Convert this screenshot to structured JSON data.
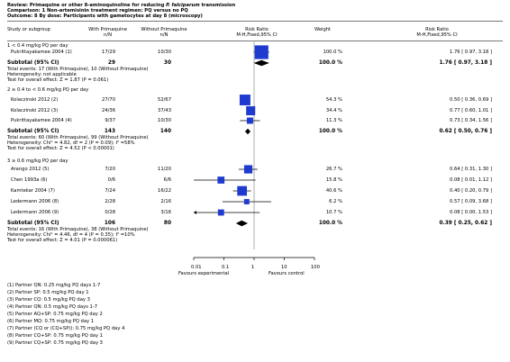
{
  "header": {
    "review": "Review: Primaquine or other 8-aminoquinoline for reducing",
    "review_italic": "P. falciparum",
    "review_end": "transmission",
    "comparison": "Comparison: 1 Non-artemisinin treatment regimen: PQ versus no PQ",
    "outcome": "Outcome: 8 By dose: Participants with gametocytes at day 8 (microscopy)"
  },
  "columns": {
    "study": "Study or subgroup",
    "g1": "With Primaquine",
    "g1n": "n/N",
    "g2": "Without Primaquine",
    "g2n": "n/N",
    "rr": "Risk Ratio",
    "rr_sub": "M-H,Fixed,95% CI",
    "weight": "Weight",
    "rr2": "Risk Ratio",
    "rr2_sub": "M-H,Fixed,95% CI"
  },
  "subgroups": [
    {
      "title": "1 < 0.4 mg/kg PQ per day",
      "studies": [
        {
          "name": "Pukrittayakamee 2004 (1)",
          "g1": "17/29",
          "g2": "10/30",
          "weight": "100.0 %",
          "ci": "1.76 [ 0.97, 3.18 ]",
          "rr": 1.76,
          "lo": 0.97,
          "hi": 3.18,
          "w": 100.0
        }
      ],
      "subtotal": {
        "label": "Subtotal (95% CI)",
        "g1": "29",
        "g2": "30",
        "weight": "100.0 %",
        "ci": "1.76 [ 0.97, 3.18 ]",
        "rr": 1.76,
        "lo": 0.97,
        "hi": 3.18
      },
      "notes": [
        "Total events: 17 (With Primaquine), 10 (Without Primaquine)",
        "Heterogeneity: not applicable",
        "Test for overall effect: Z = 1.87 (P = 0.061)"
      ]
    },
    {
      "title": "2 ≥ 0.4 to < 0.6 mg/kg PQ per day",
      "studies": [
        {
          "name": "Kolaczinski 2012 (2)",
          "g1": "27/70",
          "g2": "52/67",
          "weight": "54.3 %",
          "ci": "0.50 [ 0.36, 0.69 ]",
          "rr": 0.5,
          "lo": 0.36,
          "hi": 0.69,
          "w": 54.3
        },
        {
          "name": "Kolaczinski 2012 (3)",
          "g1": "24/36",
          "g2": "37/43",
          "weight": "34.4 %",
          "ci": "0.77 [ 0.60, 1.01 ]",
          "rr": 0.77,
          "lo": 0.6,
          "hi": 1.01,
          "w": 34.4
        },
        {
          "name": "Pukrittayakamee 2004 (4)",
          "g1": "9/37",
          "g2": "10/30",
          "weight": "11.3 %",
          "ci": "0.73 [ 0.34, 1.56 ]",
          "rr": 0.73,
          "lo": 0.34,
          "hi": 1.56,
          "w": 11.3
        }
      ],
      "subtotal": {
        "label": "Subtotal (95% CI)",
        "g1": "143",
        "g2": "140",
        "weight": "100.0 %",
        "ci": "0.62 [ 0.50, 0.76 ]",
        "rr": 0.62,
        "lo": 0.5,
        "hi": 0.76
      },
      "notes": [
        "Total events: 60 (With Primaquine), 99 (Without Primaquine)",
        "Heterogeneity: Chi² = 4.82, df = 2 (P = 0.09); I² =58%",
        "Test for overall effect: Z = 4.52 (P < 0.00001)"
      ]
    },
    {
      "title": "3 ≥ 0.6 mg/kg PQ per day",
      "studies": [
        {
          "name": "Arango 2012 (5)",
          "g1": "7/20",
          "g2": "11/20",
          "weight": "26.7 %",
          "ci": "0.64 [ 0.31, 1.30 ]",
          "rr": 0.64,
          "lo": 0.31,
          "hi": 1.3,
          "w": 26.7
        },
        {
          "name": "Chen 1993a (6)",
          "g1": "0/6",
          "g2": "6/6",
          "weight": "15.8 %",
          "ci": "0.08 [ 0.01, 1.12 ]",
          "rr": 0.08,
          "lo": 0.01,
          "hi": 1.12,
          "w": 15.8
        },
        {
          "name": "Kamtekar 2004 (7)",
          "g1": "7/24",
          "g2": "16/22",
          "weight": "40.6 %",
          "ci": "0.40 [ 0.20, 0.79 ]",
          "rr": 0.4,
          "lo": 0.2,
          "hi": 0.79,
          "w": 40.6
        },
        {
          "name": "Ledermann 2006 (8)",
          "g1": "2/28",
          "g2": "2/16",
          "weight": "6.2 %",
          "ci": "0.57 [ 0.09, 3.68 ]",
          "rr": 0.57,
          "lo": 0.09,
          "hi": 3.68,
          "w": 6.2
        },
        {
          "name": "Ledermann 2006 (9)",
          "g1": "0/28",
          "g2": "3/16",
          "weight": "10.7 %",
          "ci": "0.08 [ 0.00, 1.53 ]",
          "rr": 0.08,
          "lo": 0.004,
          "hi": 1.53,
          "w": 10.7
        }
      ],
      "subtotal": {
        "label": "Subtotal (95% CI)",
        "g1": "106",
        "g2": "80",
        "weight": "100.0 %",
        "ci": "0.39 [ 0.25, 0.62 ]",
        "rr": 0.39,
        "lo": 0.25,
        "hi": 0.62
      },
      "notes": [
        "Total events: 16 (With Primaquine), 38 (Without Primaquine)",
        "Heterogeneity: Chi² = 4.46, df = 4 (P = 0.35); I² =10%",
        "Test for overall effect: Z = 4.01 (P = 0.000061)"
      ]
    }
  ],
  "axis": {
    "ticks": [
      "0.01",
      "0.1",
      "1",
      "10",
      "100"
    ],
    "left_label": "Favours experimental",
    "right_label": "Favours control"
  },
  "footnotes": [
    "(1) Partner QN: 0.25 mg/kg PQ days 1-7",
    "(2) Partner SP: 0.5 mg/kg PQ day 1",
    "(3) Partner CQ: 0.5 mg/kg PQ day 3",
    "(4) Partner QN: 0.5 mg/kg PQ days 1-7",
    "(5) Partner AQ+SP: 0.75 mg/kg PQ day 2",
    "(6) Partner MQ: 0.75 mg/kg PQ day 1",
    "(7) Partner (CQ or (CQ+SP)): 0.75 mg/kg PQ day 4",
    "(8) Partner CQ+SP: 0.75 mg/kg PQ day 1",
    "(9) Partner CQ+SP: 0.75 mg/kg PQ day 3"
  ],
  "chart_data": {
    "type": "forest",
    "scale": "log",
    "xlim": [
      0.01,
      100
    ],
    "null_line": 1,
    "xticks": [
      0.01,
      0.1,
      1,
      10,
      100
    ],
    "left_label": "Favours experimental",
    "right_label": "Favours control",
    "colors": {
      "study": "#1f3bcf",
      "pooled": "#000000"
    },
    "series": [
      {
        "name": "1 < 0.4 mg/kg PQ per day",
        "points": [
          {
            "label": "Pukrittayakamee 2004 (1)",
            "rr": 1.76,
            "lo": 0.97,
            "hi": 3.18,
            "weight": 100.0
          }
        ],
        "pooled": {
          "rr": 1.76,
          "lo": 0.97,
          "hi": 3.18
        }
      },
      {
        "name": "2 ≥ 0.4 to < 0.6 mg/kg PQ per day",
        "points": [
          {
            "label": "Kolaczinski 2012 (2)",
            "rr": 0.5,
            "lo": 0.36,
            "hi": 0.69,
            "weight": 54.3
          },
          {
            "label": "Kolaczinski 2012 (3)",
            "rr": 0.77,
            "lo": 0.6,
            "hi": 1.01,
            "weight": 34.4
          },
          {
            "label": "Pukrittayakamee 2004 (4)",
            "rr": 0.73,
            "lo": 0.34,
            "hi": 1.56,
            "weight": 11.3
          }
        ],
        "pooled": {
          "rr": 0.62,
          "lo": 0.5,
          "hi": 0.76
        }
      },
      {
        "name": "3 ≥ 0.6 mg/kg PQ per day",
        "points": [
          {
            "label": "Arango 2012 (5)",
            "rr": 0.64,
            "lo": 0.31,
            "hi": 1.3,
            "weight": 26.7
          },
          {
            "label": "Chen 1993a (6)",
            "rr": 0.08,
            "lo": 0.01,
            "hi": 1.12,
            "weight": 15.8
          },
          {
            "label": "Kamtekar 2004 (7)",
            "rr": 0.4,
            "lo": 0.2,
            "hi": 0.79,
            "weight": 40.6
          },
          {
            "label": "Ledermann 2006 (8)",
            "rr": 0.57,
            "lo": 0.09,
            "hi": 3.68,
            "weight": 6.2
          },
          {
            "label": "Ledermann 2006 (9)",
            "rr": 0.08,
            "lo": 0.004,
            "hi": 1.53,
            "weight": 10.7
          }
        ],
        "pooled": {
          "rr": 0.39,
          "lo": 0.25,
          "hi": 0.62
        }
      }
    ]
  }
}
